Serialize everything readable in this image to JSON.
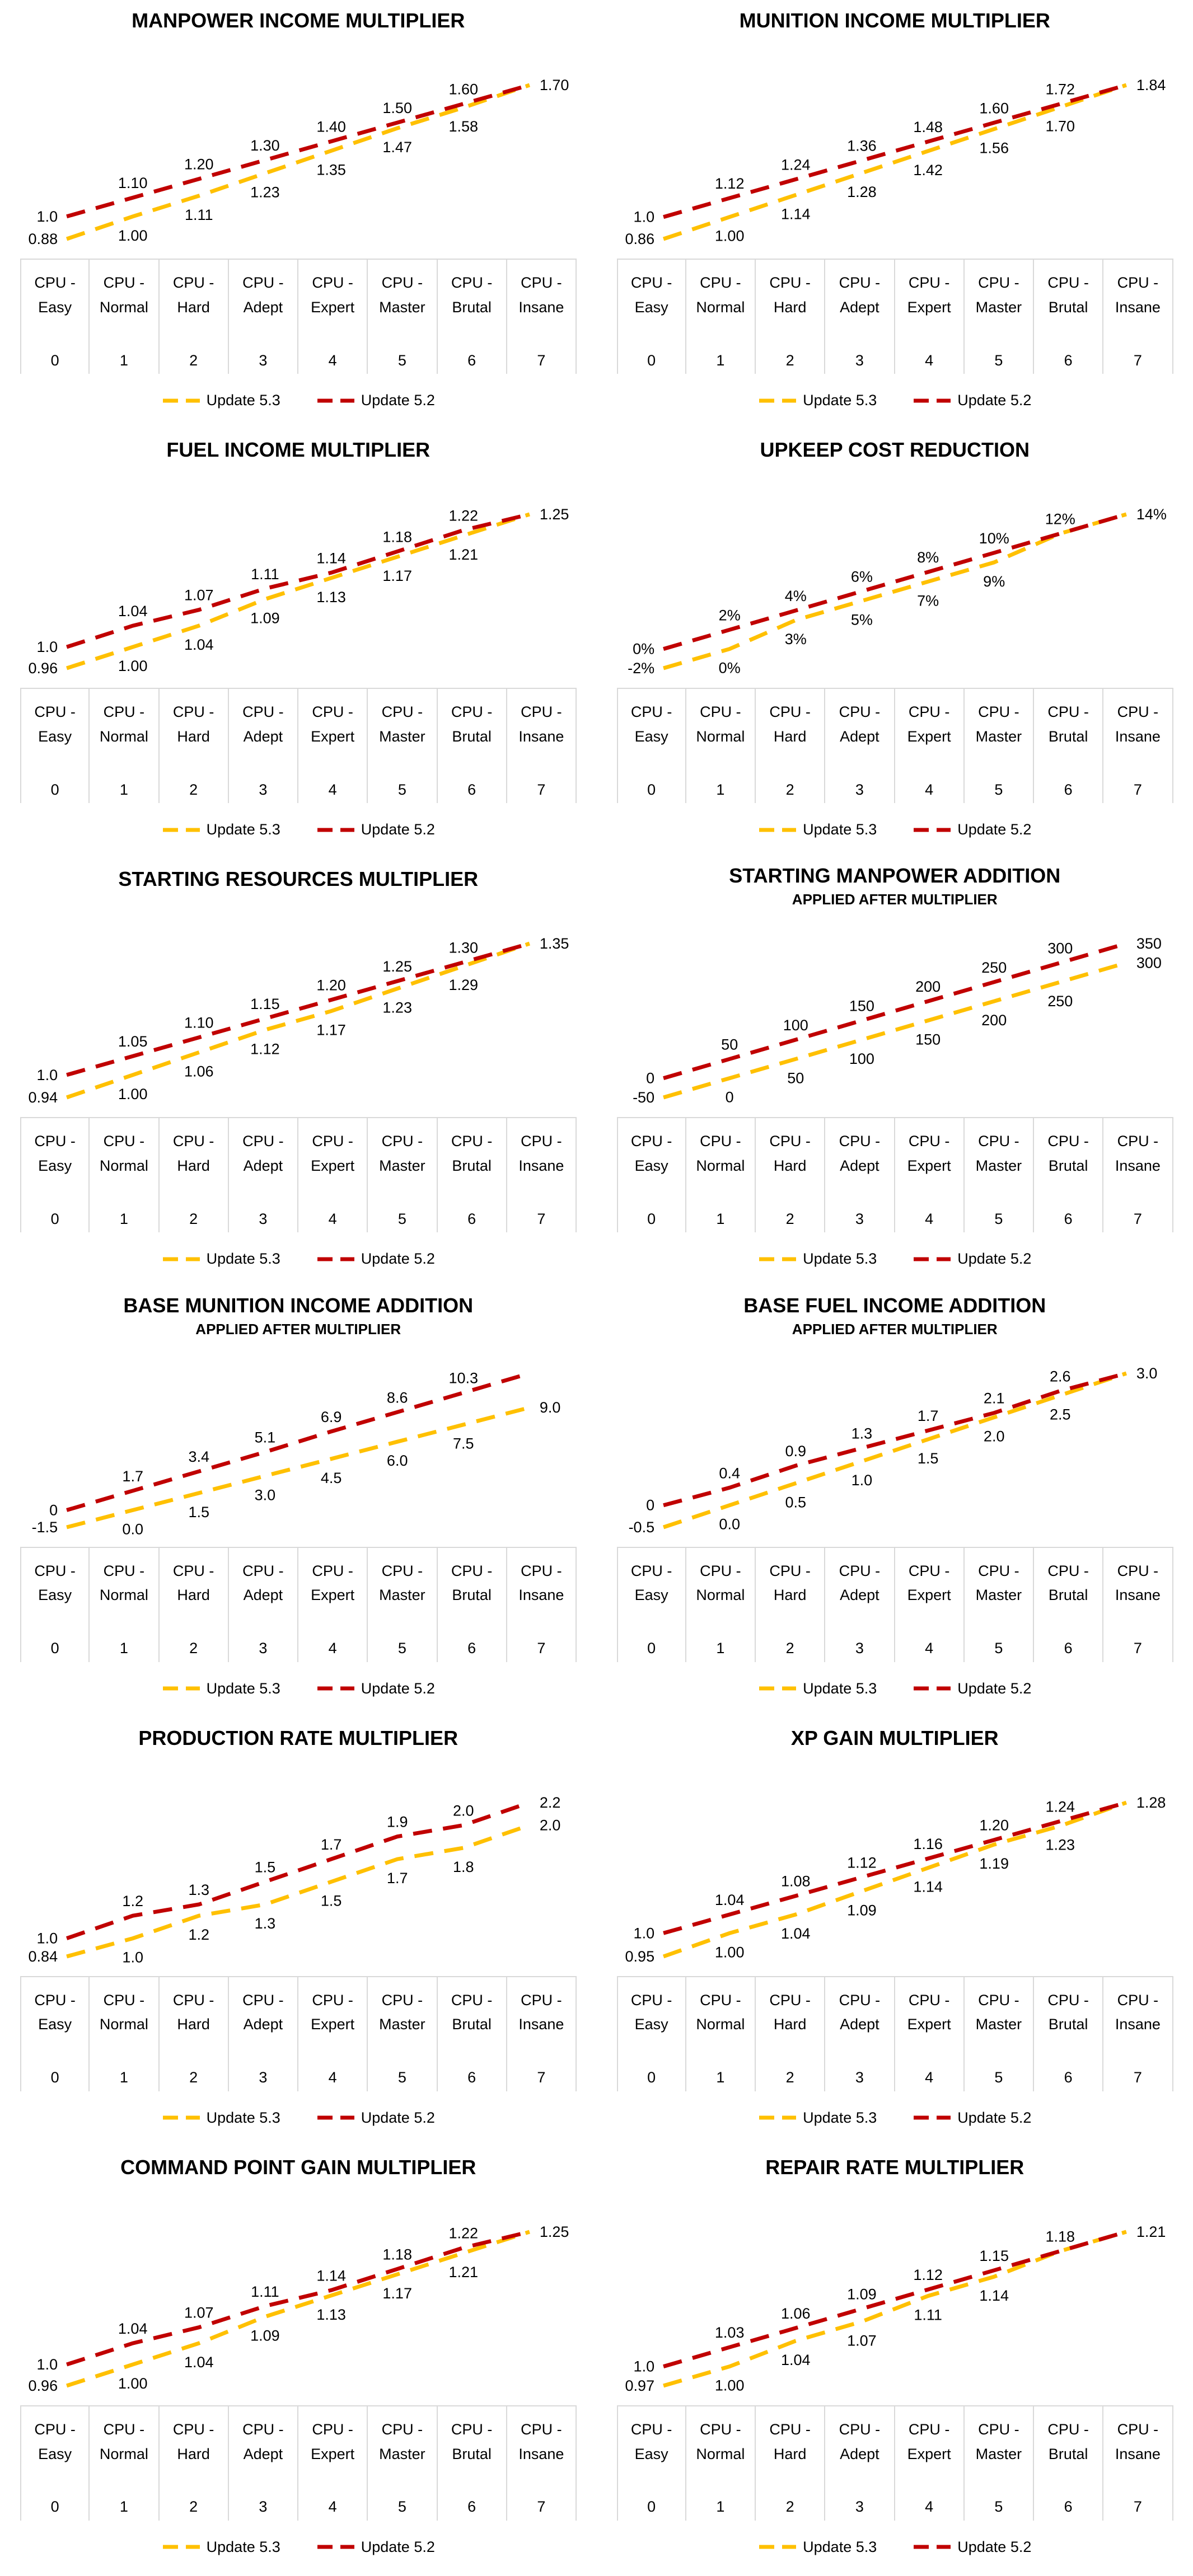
{
  "colors": {
    "update_53": "#FFC000",
    "update_52": "#C00000",
    "table_border": "#D9D9D9",
    "text": "#000000",
    "background": "#FFFFFF"
  },
  "legend": {
    "items": [
      {
        "label": "Update 5.3",
        "color": "#FFC000"
      },
      {
        "label": "Update 5.2",
        "color": "#C00000"
      }
    ]
  },
  "chart_data": [
    {
      "type": "line",
      "title": "MANPOWER INCOME MULTIPLIER",
      "subtitle": "",
      "categories": [
        "CPU - Easy",
        "CPU - Normal",
        "CPU - Hard",
        "CPU - Adept",
        "CPU - Expert",
        "CPU - Master",
        "CPU - Brutal",
        "CPU - Insane"
      ],
      "x_levels": [
        "0",
        "1",
        "2",
        "3",
        "4",
        "5",
        "6",
        "7"
      ],
      "ylim": [
        0.88,
        1.7
      ],
      "unit": "",
      "grid": false,
      "legend_position": "bottom",
      "series": [
        {
          "name": "Update 5.3",
          "color": "#FFC000",
          "label_position": "below",
          "values": [
            0.88,
            1.0,
            1.11,
            1.23,
            1.35,
            1.47,
            1.58,
            1.7
          ],
          "labels": [
            "0.88",
            "1.00",
            "1.11",
            "1.23",
            "1.35",
            "1.47",
            "1.58",
            ""
          ]
        },
        {
          "name": "Update 5.2",
          "color": "#C00000",
          "label_position": "above",
          "values": [
            1.0,
            1.1,
            1.2,
            1.3,
            1.4,
            1.5,
            1.6,
            1.7
          ],
          "labels": [
            "1.0",
            "1.10",
            "1.20",
            "1.30",
            "1.40",
            "1.50",
            "1.60",
            "1.70"
          ]
        }
      ]
    },
    {
      "type": "line",
      "title": "MUNITION INCOME MULTIPLIER",
      "subtitle": "",
      "categories": [
        "CPU - Easy",
        "CPU - Normal",
        "CPU - Hard",
        "CPU - Adept",
        "CPU - Expert",
        "CPU - Master",
        "CPU - Brutal",
        "CPU - Insane"
      ],
      "x_levels": [
        "0",
        "1",
        "2",
        "3",
        "4",
        "5",
        "6",
        "7"
      ],
      "ylim": [
        0.86,
        1.84
      ],
      "unit": "",
      "grid": false,
      "legend_position": "bottom",
      "series": [
        {
          "name": "Update 5.3",
          "color": "#FFC000",
          "label_position": "below",
          "values": [
            0.86,
            1.0,
            1.14,
            1.28,
            1.42,
            1.56,
            1.7,
            1.84
          ],
          "labels": [
            "0.86",
            "1.00",
            "1.14",
            "1.28",
            "1.42",
            "1.56",
            "1.70",
            ""
          ]
        },
        {
          "name": "Update 5.2",
          "color": "#C00000",
          "label_position": "above",
          "values": [
            1.0,
            1.12,
            1.24,
            1.36,
            1.48,
            1.6,
            1.72,
            1.84
          ],
          "labels": [
            "1.0",
            "1.12",
            "1.24",
            "1.36",
            "1.48",
            "1.60",
            "1.72",
            "1.84"
          ]
        }
      ]
    },
    {
      "type": "line",
      "title": "FUEL INCOME MULTIPLIER",
      "subtitle": "",
      "categories": [
        "CPU - Easy",
        "CPU - Normal",
        "CPU - Hard",
        "CPU - Adept",
        "CPU - Expert",
        "CPU - Master",
        "CPU - Brutal",
        "CPU - Insane"
      ],
      "x_levels": [
        "0",
        "1",
        "2",
        "3",
        "4",
        "5",
        "6",
        "7"
      ],
      "ylim": [
        0.96,
        1.25
      ],
      "unit": "",
      "grid": false,
      "legend_position": "bottom",
      "series": [
        {
          "name": "Update 5.3",
          "color": "#FFC000",
          "label_position": "below",
          "values": [
            0.96,
            1.0,
            1.04,
            1.09,
            1.13,
            1.17,
            1.21,
            1.25
          ],
          "labels": [
            "0.96",
            "1.00",
            "1.04",
            "1.09",
            "1.13",
            "1.17",
            "1.21",
            ""
          ]
        },
        {
          "name": "Update 5.2",
          "color": "#C00000",
          "label_position": "above",
          "values": [
            1.0,
            1.04,
            1.07,
            1.11,
            1.14,
            1.18,
            1.22,
            1.25
          ],
          "labels": [
            "1.0",
            "1.04",
            "1.07",
            "1.11",
            "1.14",
            "1.18",
            "1.22",
            "1.25"
          ]
        }
      ]
    },
    {
      "type": "line",
      "title": "UPKEEP COST REDUCTION",
      "subtitle": "",
      "categories": [
        "CPU - Easy",
        "CPU - Normal",
        "CPU - Hard",
        "CPU - Adept",
        "CPU - Expert",
        "CPU - Master",
        "CPU - Brutal",
        "CPU - Insane"
      ],
      "x_levels": [
        "0",
        "1",
        "2",
        "3",
        "4",
        "5",
        "6",
        "7"
      ],
      "ylim": [
        -2,
        14
      ],
      "unit": "%",
      "grid": false,
      "legend_position": "bottom",
      "series": [
        {
          "name": "Update 5.3",
          "color": "#FFC000",
          "label_position": "below",
          "values": [
            -2,
            0,
            3,
            5,
            7,
            9,
            12,
            14
          ],
          "labels": [
            "-2%",
            "0%",
            "3%",
            "5%",
            "7%",
            "9%",
            "",
            ""
          ]
        },
        {
          "name": "Update 5.2",
          "color": "#C00000",
          "label_position": "above",
          "values": [
            0,
            2,
            4,
            6,
            8,
            10,
            12,
            14
          ],
          "labels": [
            "0%",
            "2%",
            "4%",
            "6%",
            "8%",
            "10%",
            "12%",
            "14%"
          ]
        }
      ]
    },
    {
      "type": "line",
      "title": "STARTING RESOURCES MULTIPLIER",
      "subtitle": "",
      "categories": [
        "CPU - Easy",
        "CPU - Normal",
        "CPU - Hard",
        "CPU - Adept",
        "CPU - Expert",
        "CPU - Master",
        "CPU - Brutal",
        "CPU - Insane"
      ],
      "x_levels": [
        "0",
        "1",
        "2",
        "3",
        "4",
        "5",
        "6",
        "7"
      ],
      "ylim": [
        0.94,
        1.35
      ],
      "unit": "",
      "grid": false,
      "legend_position": "bottom",
      "series": [
        {
          "name": "Update 5.3",
          "color": "#FFC000",
          "label_position": "below",
          "values": [
            0.94,
            1.0,
            1.06,
            1.12,
            1.17,
            1.23,
            1.29,
            1.35
          ],
          "labels": [
            "0.94",
            "1.00",
            "1.06",
            "1.12",
            "1.17",
            "1.23",
            "1.29",
            ""
          ]
        },
        {
          "name": "Update 5.2",
          "color": "#C00000",
          "label_position": "above",
          "values": [
            1.0,
            1.05,
            1.1,
            1.15,
            1.2,
            1.25,
            1.3,
            1.35
          ],
          "labels": [
            "1.0",
            "1.05",
            "1.10",
            "1.15",
            "1.20",
            "1.25",
            "1.30",
            "1.35"
          ]
        }
      ]
    },
    {
      "type": "line",
      "title": "STARTING MANPOWER ADDITION",
      "subtitle": "APPLIED AFTER MULTIPLIER",
      "categories": [
        "CPU - Easy",
        "CPU - Normal",
        "CPU - Hard",
        "CPU - Adept",
        "CPU - Expert",
        "CPU - Master",
        "CPU - Brutal",
        "CPU - Insane"
      ],
      "x_levels": [
        "0",
        "1",
        "2",
        "3",
        "4",
        "5",
        "6",
        "7"
      ],
      "ylim": [
        -50,
        350
      ],
      "unit": "",
      "grid": false,
      "legend_position": "bottom",
      "series": [
        {
          "name": "Update 5.3",
          "color": "#FFC000",
          "label_position": "below",
          "values": [
            -50,
            0,
            50,
            100,
            150,
            200,
            250,
            300
          ],
          "labels": [
            "-50",
            "0",
            "50",
            "100",
            "150",
            "200",
            "250",
            "300"
          ]
        },
        {
          "name": "Update 5.2",
          "color": "#C00000",
          "label_position": "above",
          "values": [
            0,
            50,
            100,
            150,
            200,
            250,
            300,
            350
          ],
          "labels": [
            "0",
            "50",
            "100",
            "150",
            "200",
            "250",
            "300",
            "350"
          ]
        }
      ]
    },
    {
      "type": "line",
      "title": "BASE MUNITION INCOME ADDITION",
      "subtitle": "APPLIED AFTER MULTIPLIER",
      "categories": [
        "CPU - Easy",
        "CPU - Normal",
        "CPU - Hard",
        "CPU - Adept",
        "CPU - Expert",
        "CPU - Master",
        "CPU - Brutal",
        "CPU - Insane"
      ],
      "x_levels": [
        "0",
        "1",
        "2",
        "3",
        "4",
        "5",
        "6",
        "7"
      ],
      "ylim": [
        -1.5,
        12
      ],
      "unit": "",
      "grid": false,
      "legend_position": "bottom",
      "series": [
        {
          "name": "Update 5.3",
          "color": "#FFC000",
          "label_position": "below",
          "values": [
            -1.5,
            0.0,
            1.5,
            3.0,
            4.5,
            6.0,
            7.5,
            9.0
          ],
          "labels": [
            "-1.5",
            "0.0",
            "1.5",
            "3.0",
            "4.5",
            "6.0",
            "7.5",
            "9.0"
          ]
        },
        {
          "name": "Update 5.2",
          "color": "#C00000",
          "label_position": "above",
          "values": [
            0,
            1.7,
            3.4,
            5.1,
            6.9,
            8.6,
            10.3,
            12.0
          ],
          "labels": [
            "0",
            "1.7",
            "3.4",
            "5.1",
            "6.9",
            "8.6",
            "10.3",
            ""
          ]
        }
      ]
    },
    {
      "type": "line",
      "title": "BASE FUEL INCOME ADDITION",
      "subtitle": "APPLIED AFTER MULTIPLIER",
      "categories": [
        "CPU - Easy",
        "CPU - Normal",
        "CPU - Hard",
        "CPU - Adept",
        "CPU - Expert",
        "CPU - Master",
        "CPU - Brutal",
        "CPU - Insane"
      ],
      "x_levels": [
        "0",
        "1",
        "2",
        "3",
        "4",
        "5",
        "6",
        "7"
      ],
      "ylim": [
        -0.5,
        3.0
      ],
      "unit": "",
      "grid": false,
      "legend_position": "bottom",
      "series": [
        {
          "name": "Update 5.3",
          "color": "#FFC000",
          "label_position": "below",
          "values": [
            -0.5,
            0.0,
            0.5,
            1.0,
            1.5,
            2.0,
            2.5,
            3.0
          ],
          "labels": [
            "-0.5",
            "0.0",
            "0.5",
            "1.0",
            "1.5",
            "2.0",
            "2.5",
            ""
          ]
        },
        {
          "name": "Update 5.2",
          "color": "#C00000",
          "label_position": "above",
          "values": [
            0,
            0.4,
            0.9,
            1.3,
            1.7,
            2.1,
            2.6,
            3.0
          ],
          "labels": [
            "0",
            "0.4",
            "0.9",
            "1.3",
            "1.7",
            "2.1",
            "2.6",
            "3.0"
          ]
        }
      ]
    },
    {
      "type": "line",
      "title": "PRODUCTION RATE MULTIPLIER",
      "subtitle": "",
      "categories": [
        "CPU - Easy",
        "CPU - Normal",
        "CPU - Hard",
        "CPU - Adept",
        "CPU - Expert",
        "CPU - Master",
        "CPU - Brutal",
        "CPU - Insane"
      ],
      "x_levels": [
        "0",
        "1",
        "2",
        "3",
        "4",
        "5",
        "6",
        "7"
      ],
      "ylim": [
        0.84,
        2.2
      ],
      "unit": "",
      "grid": false,
      "legend_position": "bottom",
      "series": [
        {
          "name": "Update 5.3",
          "color": "#FFC000",
          "label_position": "below",
          "values": [
            0.84,
            1.0,
            1.2,
            1.3,
            1.5,
            1.7,
            1.8,
            2.0
          ],
          "labels": [
            "0.84",
            "1.0",
            "1.2",
            "1.3",
            "1.5",
            "1.7",
            "1.8",
            "2.0"
          ]
        },
        {
          "name": "Update 5.2",
          "color": "#C00000",
          "label_position": "above",
          "values": [
            1.0,
            1.2,
            1.3,
            1.5,
            1.7,
            1.9,
            2.0,
            2.2
          ],
          "labels": [
            "1.0",
            "1.2",
            "1.3",
            "1.5",
            "1.7",
            "1.9",
            "2.0",
            "2.2"
          ]
        }
      ]
    },
    {
      "type": "line",
      "title": "XP GAIN MULTIPLIER",
      "subtitle": "",
      "categories": [
        "CPU - Easy",
        "CPU - Normal",
        "CPU - Hard",
        "CPU - Adept",
        "CPU - Expert",
        "CPU - Master",
        "CPU - Brutal",
        "CPU - Insane"
      ],
      "x_levels": [
        "0",
        "1",
        "2",
        "3",
        "4",
        "5",
        "6",
        "7"
      ],
      "ylim": [
        0.95,
        1.28
      ],
      "unit": "",
      "grid": false,
      "legend_position": "bottom",
      "series": [
        {
          "name": "Update 5.3",
          "color": "#FFC000",
          "label_position": "below",
          "values": [
            0.95,
            1.0,
            1.04,
            1.09,
            1.14,
            1.19,
            1.23,
            1.28
          ],
          "labels": [
            "0.95",
            "1.00",
            "1.04",
            "1.09",
            "1.14",
            "1.19",
            "1.23",
            ""
          ]
        },
        {
          "name": "Update 5.2",
          "color": "#C00000",
          "label_position": "above",
          "values": [
            1.0,
            1.04,
            1.08,
            1.12,
            1.16,
            1.2,
            1.24,
            1.28
          ],
          "labels": [
            "1.0",
            "1.04",
            "1.08",
            "1.12",
            "1.16",
            "1.20",
            "1.24",
            "1.28"
          ]
        }
      ]
    },
    {
      "type": "line",
      "title": "COMMAND POINT GAIN MULTIPLIER",
      "subtitle": "",
      "categories": [
        "CPU - Easy",
        "CPU - Normal",
        "CPU - Hard",
        "CPU - Adept",
        "CPU - Expert",
        "CPU - Master",
        "CPU - Brutal",
        "CPU - Insane"
      ],
      "x_levels": [
        "0",
        "1",
        "2",
        "3",
        "4",
        "5",
        "6",
        "7"
      ],
      "ylim": [
        0.96,
        1.25
      ],
      "unit": "",
      "grid": false,
      "legend_position": "bottom",
      "series": [
        {
          "name": "Update 5.3",
          "color": "#FFC000",
          "label_position": "below",
          "values": [
            0.96,
            1.0,
            1.04,
            1.09,
            1.13,
            1.17,
            1.21,
            1.25
          ],
          "labels": [
            "0.96",
            "1.00",
            "1.04",
            "1.09",
            "1.13",
            "1.17",
            "1.21",
            ""
          ]
        },
        {
          "name": "Update 5.2",
          "color": "#C00000",
          "label_position": "above",
          "values": [
            1.0,
            1.04,
            1.07,
            1.11,
            1.14,
            1.18,
            1.22,
            1.25
          ],
          "labels": [
            "1.0",
            "1.04",
            "1.07",
            "1.11",
            "1.14",
            "1.18",
            "1.22",
            "1.25"
          ]
        }
      ]
    },
    {
      "type": "line",
      "title": "REPAIR RATE MULTIPLIER",
      "subtitle": "",
      "categories": [
        "CPU - Easy",
        "CPU - Normal",
        "CPU - Hard",
        "CPU - Adept",
        "CPU - Expert",
        "CPU - Master",
        "CPU - Brutal",
        "CPU - Insane"
      ],
      "x_levels": [
        "0",
        "1",
        "2",
        "3",
        "4",
        "5",
        "6",
        "7"
      ],
      "ylim": [
        0.97,
        1.21
      ],
      "unit": "",
      "grid": false,
      "legend_position": "bottom",
      "series": [
        {
          "name": "Update 5.3",
          "color": "#FFC000",
          "label_position": "below",
          "values": [
            0.97,
            1.0,
            1.04,
            1.07,
            1.11,
            1.14,
            1.18,
            1.21
          ],
          "labels": [
            "0.97",
            "1.00",
            "1.04",
            "1.07",
            "1.11",
            "1.14",
            "",
            ""
          ]
        },
        {
          "name": "Update 5.2",
          "color": "#C00000",
          "label_position": "above",
          "values": [
            1.0,
            1.03,
            1.06,
            1.09,
            1.12,
            1.15,
            1.18,
            1.21
          ],
          "labels": [
            "1.0",
            "1.03",
            "1.06",
            "1.09",
            "1.12",
            "1.15",
            "1.18",
            "1.21"
          ]
        }
      ]
    }
  ]
}
